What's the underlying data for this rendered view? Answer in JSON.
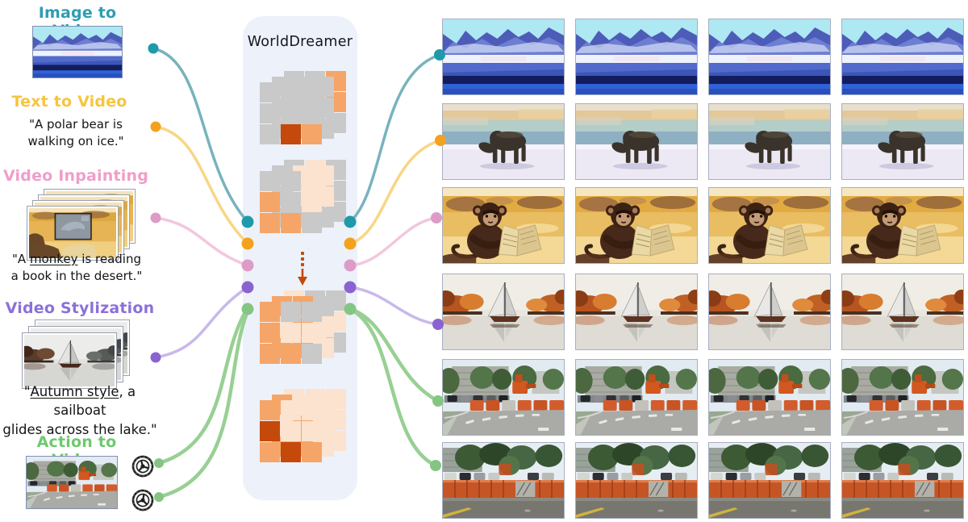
{
  "model": {
    "title": "WorldDreamer",
    "box_color": "#EDF1FA",
    "arrow_color": "#C4490A",
    "token_palette": {
      "g": "#C9C9C9",
      "o": "#F6A569",
      "l": "#FBE3CF",
      "d": "#C4490A"
    },
    "token_grids": [
      {
        "layers": [
          [
            "g",
            "g",
            "o",
            "g",
            "g",
            "o",
            "g",
            "g",
            "g"
          ],
          [
            "g",
            "g",
            "g",
            "g",
            "g",
            "g",
            "g",
            "g",
            "g"
          ],
          [
            "g",
            "g",
            "g",
            "g",
            "g",
            "g",
            "g",
            "d",
            "o"
          ]
        ]
      },
      {
        "layers": [
          [
            "g",
            "l",
            "g",
            "g",
            "l",
            "g",
            "g",
            "g",
            "g"
          ],
          [
            "g",
            "l",
            "l",
            "g",
            "l",
            "l",
            "g",
            "g",
            "g"
          ],
          [
            "g",
            "g",
            "l",
            "o",
            "g",
            "l",
            "o",
            "o",
            "g"
          ]
        ]
      },
      {
        "layers": [
          [
            "l",
            "g",
            "g",
            "l",
            "l",
            "l",
            "l",
            "l",
            "g"
          ],
          [
            "o",
            "o",
            "g",
            "l",
            "o",
            "l",
            "o",
            "o",
            "l"
          ],
          [
            "o",
            "g",
            "g",
            "o",
            "l",
            "l",
            "o",
            "o",
            "g"
          ]
        ]
      },
      {
        "layers": [
          [
            "l",
            "l",
            "l",
            "l",
            "l",
            "l",
            "o",
            "l",
            "l"
          ],
          [
            "o",
            "l",
            "l",
            "l",
            "o",
            "l",
            "o",
            "o",
            "l"
          ],
          [
            "o",
            "l",
            "l",
            "d",
            "l",
            "l",
            "o",
            "d",
            "o"
          ]
        ]
      }
    ]
  },
  "tasks": [
    {
      "id": "image-to-video",
      "label": "Image to Video",
      "color": "#2E9DB2",
      "input": "winter-lake-image"
    },
    {
      "id": "text-to-video",
      "label": "Text to Video",
      "color": "#F6C53E",
      "prompt": {
        "l1": "\"A polar bear is",
        "l2": "walking on ice.\""
      }
    },
    {
      "id": "video-inpainting",
      "label": "Video Inpainting",
      "color": "#EF9EC9",
      "input": "masked-desert-video-frames",
      "prompt": {
        "pre": "\"A ",
        "u": "monkey",
        "post": " is reading",
        "l2": "a book in the desert.\""
      }
    },
    {
      "id": "video-stylization",
      "label": "Video Stylization",
      "color": "#8B70DA",
      "input": "gray-sailboat-video-frames",
      "prompt": {
        "pre": "\"",
        "u": "Autumn style",
        "post": ", a sailboat",
        "l2": "glides across the lake.\""
      }
    },
    {
      "id": "action-to-video",
      "label": "Action to Video",
      "color": "#6EC96E",
      "input": "driving-scene-image",
      "action_icons": [
        "steering-wheel-icon",
        "steering-wheel-icon"
      ]
    }
  ],
  "connections": {
    "streams": [
      {
        "id": "image",
        "dot": "#1E9AAB",
        "curve": "#79B3BD"
      },
      {
        "id": "text",
        "dot": "#F4A11D",
        "curve": "#F8D684"
      },
      {
        "id": "inpaint",
        "dot": "#DC9CC7",
        "curve": "#F2C7DD"
      },
      {
        "id": "stylize",
        "dot": "#8A63D0",
        "curve": "#C9B8EC"
      },
      {
        "id": "action",
        "dot": "#85C583",
        "curve": "#98D093"
      }
    ]
  },
  "output": {
    "rows": [
      {
        "scene": "winter",
        "stream": "image",
        "frames": 4,
        "description": "snowy mountain lake video frames"
      },
      {
        "scene": "polarbear",
        "stream": "text",
        "frames": 4,
        "description": "polar bear walking on ice"
      },
      {
        "scene": "monkey",
        "stream": "inpaint",
        "frames": 4,
        "description": "monkey reading a book in the desert"
      },
      {
        "scene": "sailboat",
        "stream": "stylize",
        "frames": 4,
        "description": "autumn style sailboat gliding across lake"
      },
      {
        "scene": "street1",
        "stream": "action",
        "frames": 4,
        "description": "driving scene with construction barriers"
      },
      {
        "scene": "street2",
        "stream": "action",
        "frames": 4,
        "description": "driving scene approaching barrier wall"
      }
    ]
  }
}
